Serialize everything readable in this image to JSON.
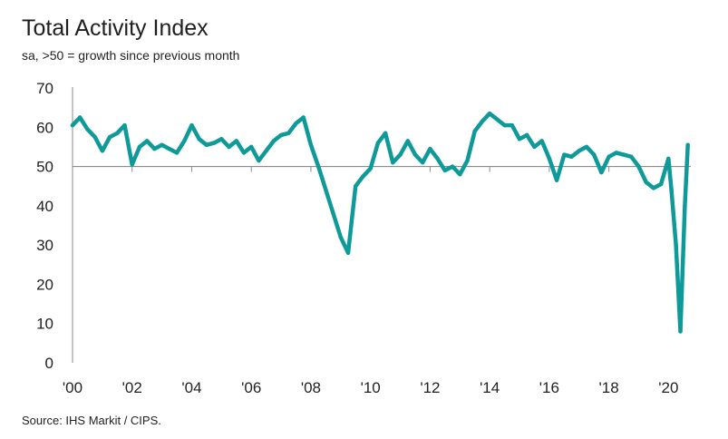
{
  "chart_data": {
    "type": "line",
    "title": "Total Activity Index",
    "subtitle": "sa, >50 = growth since previous month",
    "source": "Source: IHS Markit / CIPS.",
    "xlabel": "",
    "ylabel": "",
    "ylim": [
      0,
      70
    ],
    "xlim": [
      2000,
      2020.75
    ],
    "yticks": [
      "0",
      "10",
      "20",
      "30",
      "40",
      "50",
      "60",
      "70"
    ],
    "xticks": [
      "'00",
      "'02",
      "'04",
      "'06",
      "'08",
      "'10",
      "'12",
      "'14",
      "'16",
      "'18",
      "'20"
    ],
    "reference_line": 50,
    "grid": false,
    "colors": {
      "line": "#0f9a9a",
      "reference": "#8c8c8c",
      "axis": "#8c8c8c"
    },
    "series": [
      {
        "name": "",
        "x": [
          2000.0,
          2000.25,
          2000.5,
          2000.75,
          2001.0,
          2001.25,
          2001.5,
          2001.75,
          2002.0,
          2002.25,
          2002.5,
          2002.75,
          2003.0,
          2003.25,
          2003.5,
          2003.75,
          2004.0,
          2004.25,
          2004.5,
          2004.75,
          2005.0,
          2005.25,
          2005.5,
          2005.75,
          2006.0,
          2006.25,
          2006.5,
          2006.75,
          2007.0,
          2007.25,
          2007.5,
          2007.75,
          2008.0,
          2008.25,
          2008.5,
          2008.75,
          2009.0,
          2009.25,
          2009.5,
          2009.75,
          2010.0,
          2010.25,
          2010.5,
          2010.75,
          2011.0,
          2011.25,
          2011.5,
          2011.75,
          2012.0,
          2012.25,
          2012.5,
          2012.75,
          2013.0,
          2013.25,
          2013.5,
          2013.75,
          2014.0,
          2014.25,
          2014.5,
          2014.75,
          2015.0,
          2015.25,
          2015.5,
          2015.75,
          2016.0,
          2016.25,
          2016.5,
          2016.75,
          2017.0,
          2017.25,
          2017.5,
          2017.75,
          2018.0,
          2018.25,
          2018.5,
          2018.75,
          2019.0,
          2019.25,
          2019.5,
          2019.75,
          2020.0,
          2020.1,
          2020.25,
          2020.4,
          2020.55,
          2020.65
        ],
        "y": [
          60.5,
          62.5,
          59.5,
          57.5,
          54.0,
          57.5,
          58.5,
          60.5,
          50.5,
          55.0,
          56.5,
          54.5,
          55.5,
          54.5,
          53.5,
          56.5,
          60.5,
          57.0,
          55.5,
          56.0,
          57.0,
          55.0,
          56.5,
          53.5,
          55.0,
          51.5,
          54.0,
          56.5,
          58.0,
          58.5,
          61.0,
          62.5,
          55.5,
          50.0,
          44.0,
          38.0,
          32.0,
          28.0,
          45.0,
          47.5,
          49.5,
          56.0,
          58.5,
          51.0,
          53.0,
          56.5,
          53.0,
          51.0,
          54.5,
          52.0,
          49.0,
          50.0,
          48.0,
          51.5,
          59.0,
          61.5,
          63.5,
          62.0,
          60.5,
          60.5,
          57.0,
          58.0,
          55.0,
          56.5,
          52.0,
          46.5,
          53.0,
          52.5,
          54.0,
          55.0,
          53.0,
          48.5,
          52.5,
          53.5,
          53.0,
          52.5,
          50.0,
          46.0,
          44.5,
          45.5,
          52.0,
          44.0,
          30.0,
          8.0,
          40.0,
          55.5
        ]
      }
    ]
  }
}
